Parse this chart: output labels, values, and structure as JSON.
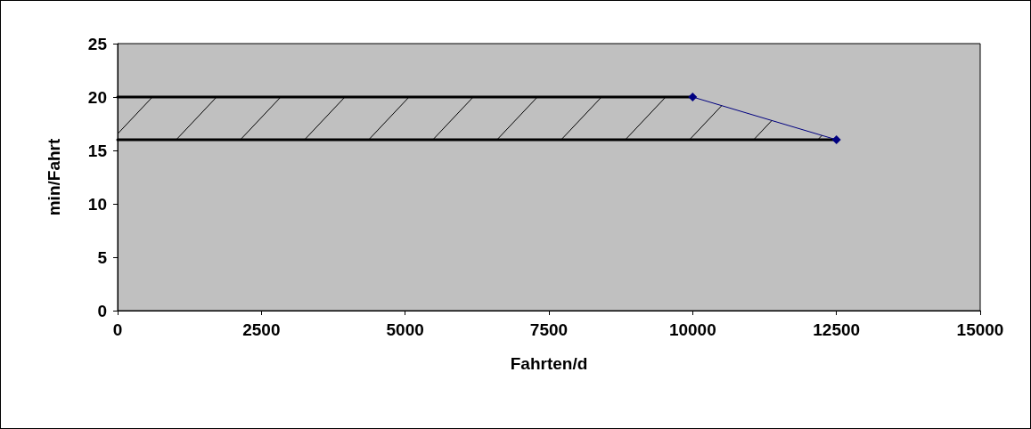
{
  "chart_data": {
    "type": "line",
    "xlabel": "Fahrten/d",
    "ylabel": "min/Fahrt",
    "series": [
      {
        "color": "#000000",
        "x": [
          0,
          10000
        ],
        "values": [
          20,
          20
        ],
        "marker": "none"
      },
      {
        "color": "#000000",
        "x": [
          0,
          12500
        ],
        "values": [
          16,
          16
        ],
        "marker": "none"
      },
      {
        "color": "#000080",
        "x": [
          10000,
          12500
        ],
        "values": [
          20,
          16
        ],
        "marker": "diamond"
      }
    ],
    "xlim": [
      0,
      15000
    ],
    "xticks": [
      0,
      2500,
      5000,
      7500,
      10000,
      12500,
      15000
    ],
    "ylim": [
      0,
      25
    ],
    "yticks": [
      0,
      5,
      10,
      15,
      20,
      25
    ],
    "grid": false,
    "line_style": "solid"
  }
}
